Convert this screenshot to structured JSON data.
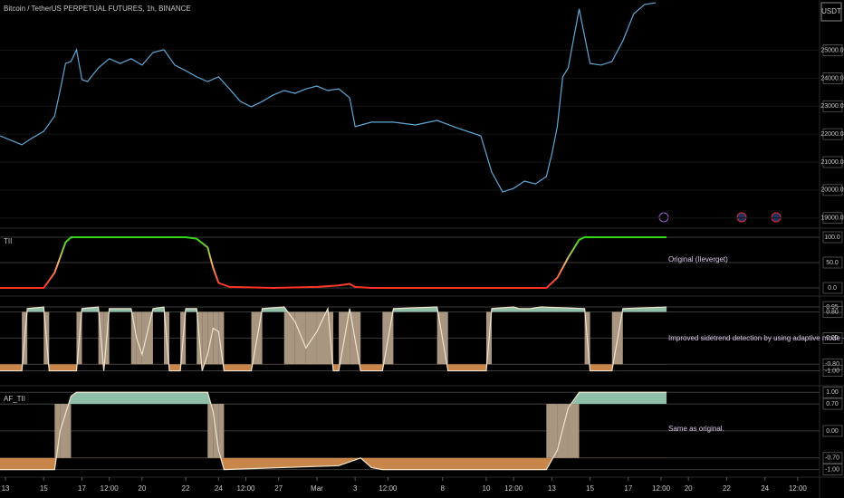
{
  "chart_data": [
    {
      "type": "line",
      "title": "Bitcoin / TetherUS PERPETUAL FUTURES, 1h, BINANCE",
      "currency": "USDT",
      "ylim": [
        18700,
        26800
      ],
      "yticks": [
        {
          "value": 19000,
          "label": "19000.0"
        },
        {
          "value": 20000,
          "label": "20000.0"
        },
        {
          "value": 21000,
          "label": "21000.0"
        },
        {
          "value": 22000,
          "label": "22000.0"
        },
        {
          "value": 23000,
          "label": "23000.0"
        },
        {
          "value": 24000,
          "label": "24000.0"
        },
        {
          "value": 25000,
          "label": "25000.0"
        }
      ],
      "series": [
        {
          "color": "#5fa8d8",
          "x": [
            0,
            2,
            4,
            6,
            8,
            10,
            11,
            12,
            13,
            14,
            15,
            16,
            18,
            20,
            22,
            24,
            26,
            28,
            30,
            32,
            34,
            36,
            38,
            40,
            42,
            44,
            46,
            48,
            50,
            52,
            54,
            56,
            58,
            60,
            62,
            64,
            65,
            68,
            72,
            76,
            80,
            84,
            88,
            90,
            92,
            94,
            96,
            98,
            100,
            101,
            102,
            103,
            104,
            106,
            108,
            110,
            112,
            114,
            116,
            118,
            120
          ],
          "values": [
            21940,
            21780,
            21620,
            21875,
            22100,
            22650,
            23560,
            24530,
            24600,
            25020,
            23950,
            23880,
            24370,
            24700,
            24530,
            24700,
            24470,
            24920,
            25020,
            24470,
            24270,
            24050,
            23880,
            24050,
            23620,
            23170,
            22980,
            23170,
            23400,
            23560,
            23460,
            23620,
            23720,
            23560,
            23620,
            23300,
            22270,
            22430,
            22430,
            22330,
            22490,
            22200,
            21940,
            20640,
            19930,
            20060,
            20320,
            20220,
            20480,
            21290,
            22270,
            24050,
            24370,
            26480,
            24530,
            24470,
            24600,
            25340,
            26310,
            26640,
            26700
          ]
        }
      ]
    },
    {
      "type": "line",
      "title": "TII",
      "annotation": "Original (Ileverget)",
      "ylim": [
        -12.5,
        112.5
      ],
      "yticks": [
        {
          "value": 0,
          "label": "0.0"
        },
        {
          "value": 50,
          "label": "50.0"
        },
        {
          "value": 100,
          "label": "100.0"
        }
      ],
      "gradient": [
        "#00e000",
        "#f0b070",
        "#ff1010"
      ],
      "series": [
        {
          "x": [
            0,
            8,
            10,
            12,
            13,
            34,
            36,
            38,
            39,
            40,
            42,
            50,
            58,
            62,
            64,
            65,
            68,
            100,
            102,
            104,
            106,
            107,
            122
          ],
          "values": [
            0,
            0,
            30,
            90,
            100,
            100,
            97,
            80,
            40,
            10,
            2,
            0,
            2,
            5,
            8,
            2,
            0,
            0,
            20,
            60,
            95,
            100,
            100
          ]
        }
      ]
    },
    {
      "type": "line",
      "annotation": "Improved sidetrend detection by using adaptive mode + KAMA",
      "ylim": [
        -1.4,
        1.2
      ],
      "yticks": [
        0.95,
        {
          "value": 0.8,
          "label": "0.80"
        },
        {
          "value": 0,
          "label": "0.00"
        },
        {
          "value": -0.8,
          "label": "-0.80"
        },
        {
          "value": -1,
          "label": "-1.00"
        }
      ],
      "thresholds": [
        -0.8,
        0.8
      ],
      "fills": [
        "#c8864a",
        "#a89680",
        "#8fbfa8"
      ],
      "series": [
        {
          "color": "#efe2cc",
          "x": [
            0,
            4,
            5,
            8,
            9,
            14,
            15,
            18,
            19,
            20,
            24,
            25,
            26,
            28,
            30,
            31,
            33,
            34,
            36,
            37,
            38,
            39,
            40,
            41,
            46,
            48,
            52,
            54,
            56,
            58,
            60,
            61,
            62,
            64,
            66,
            70,
            72,
            80,
            82,
            89,
            90,
            94,
            95,
            97,
            99,
            107,
            108,
            112,
            114,
            122
          ],
          "values": [
            -1,
            -1,
            0.9,
            0.95,
            -1,
            -1,
            0.9,
            0.95,
            -1,
            0.9,
            0.9,
            0,
            -0.5,
            0.9,
            0.95,
            -1,
            -1,
            0.9,
            0.9,
            -1,
            -0.5,
            0.3,
            0.2,
            -1,
            -1,
            0.9,
            0.95,
            0.5,
            -0.3,
            0.2,
            0.9,
            -1,
            -1,
            0.9,
            -1,
            -1,
            0.9,
            0.95,
            -1,
            -1,
            0.9,
            0.95,
            0.9,
            0.9,
            0.95,
            0.9,
            -1,
            -1,
            0.9,
            0.95
          ]
        }
      ]
    },
    {
      "type": "line",
      "title": "AF_TII",
      "annotation": "Same as original.",
      "ylim": [
        -1.15,
        1.1
      ],
      "yticks": [
        {
          "value": 1,
          "label": "1.00"
        },
        {
          "value": 0.7,
          "label": "0.70"
        },
        {
          "value": 0,
          "label": "0.00"
        },
        {
          "value": -0.7,
          "label": "-0.70"
        },
        {
          "value": -1,
          "label": "-1.00"
        }
      ],
      "thresholds": [
        -0.7,
        0.7
      ],
      "fills": [
        "#c8864a",
        "#a89680",
        "#8fbfa8"
      ],
      "xlim": [
        0,
        150
      ],
      "xticks": [
        {
          "value": 1,
          "label": "13"
        },
        {
          "value": 8,
          "label": "15"
        },
        {
          "value": 15,
          "label": "17"
        },
        {
          "value": 20,
          "label": "12:00"
        },
        {
          "value": 26,
          "label": "20"
        },
        {
          "value": 34,
          "label": "22"
        },
        {
          "value": 40,
          "label": "24"
        },
        {
          "value": 45,
          "label": "12:00"
        },
        {
          "value": 51,
          "label": "27"
        },
        {
          "value": 58,
          "label": "Mar"
        },
        {
          "value": 65,
          "label": "3"
        },
        {
          "value": 71,
          "label": "12:00"
        },
        {
          "value": 81,
          "label": "8"
        },
        {
          "value": 89,
          "label": "10"
        },
        {
          "value": 94,
          "label": "12:00"
        },
        {
          "value": 101,
          "label": "13"
        },
        {
          "value": 108,
          "label": "15"
        },
        {
          "value": 115,
          "label": "17"
        },
        {
          "value": 121,
          "label": "12:00"
        },
        {
          "value": 126,
          "label": "20"
        },
        {
          "value": 133,
          "label": "22"
        },
        {
          "value": 140,
          "label": "24"
        },
        {
          "value": 146,
          "label": "12:00"
        }
      ],
      "series": [
        {
          "color": "#efe2cc",
          "x": [
            0,
            10,
            11,
            13,
            14,
            38,
            39,
            40,
            41,
            62,
            66,
            68,
            70,
            100,
            102,
            104,
            106,
            122
          ],
          "values": [
            -1,
            -1,
            0,
            0.9,
            1,
            1,
            0.5,
            -0.5,
            -1,
            -0.9,
            -0.7,
            -0.95,
            -1,
            -1,
            -0.5,
            0.6,
            1,
            1
          ]
        }
      ]
    }
  ]
}
